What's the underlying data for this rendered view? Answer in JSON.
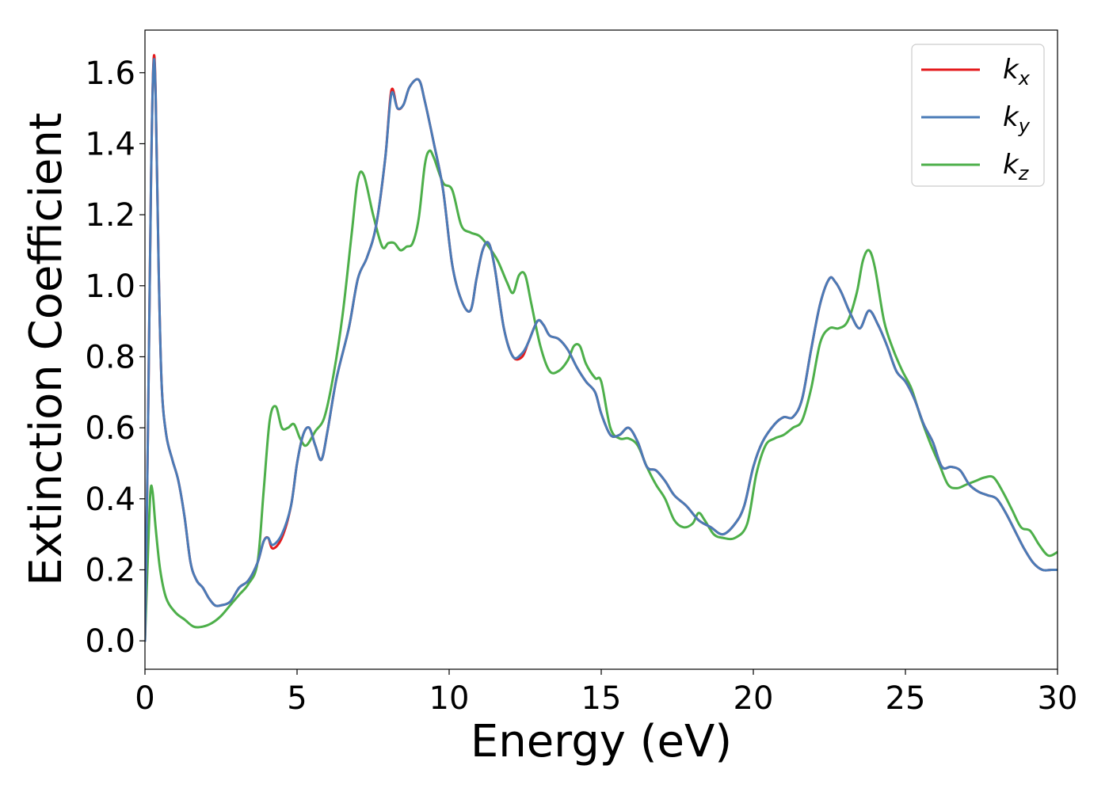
{
  "chart_data": {
    "type": "line",
    "title": "",
    "xlabel": "Energy (eV)",
    "ylabel": "Extinction Coefficient",
    "xlim": [
      0,
      30
    ],
    "ylim": [
      -0.08,
      1.72
    ],
    "xticks": [
      0,
      5,
      10,
      15,
      20,
      25,
      30
    ],
    "xtick_labels": [
      "0",
      "5",
      "10",
      "15",
      "20",
      "25",
      "30"
    ],
    "yticks": [
      0.0,
      0.2,
      0.4,
      0.6,
      0.8,
      1.0,
      1.2,
      1.4,
      1.6
    ],
    "ytick_labels": [
      "0.0",
      "0.2",
      "0.4",
      "0.6",
      "0.8",
      "1.0",
      "1.2",
      "1.4",
      "1.6"
    ],
    "grid": false,
    "legend_position": "top-right",
    "series": [
      {
        "name": "k",
        "subscript": "x",
        "color": "#e41a1c",
        "x": [
          0.0,
          0.1,
          0.2,
          0.28,
          0.35,
          0.45,
          0.55,
          0.7,
          0.9,
          1.1,
          1.3,
          1.5,
          1.7,
          1.9,
          2.1,
          2.3,
          2.5,
          2.8,
          3.1,
          3.4,
          3.7,
          3.9,
          4.05,
          4.2,
          4.5,
          4.8,
          5.0,
          5.2,
          5.4,
          5.6,
          5.8,
          6.0,
          6.3,
          6.7,
          7.0,
          7.3,
          7.6,
          7.9,
          8.1,
          8.3,
          8.5,
          8.7,
          9.0,
          9.2,
          9.5,
          9.8,
          10.1,
          10.4,
          10.7,
          10.9,
          11.1,
          11.3,
          11.5,
          11.8,
          12.1,
          12.4,
          12.6,
          12.9,
          13.1,
          13.3,
          13.6,
          13.9,
          14.2,
          14.5,
          14.8,
          15.0,
          15.3,
          15.6,
          15.9,
          16.2,
          16.5,
          16.8,
          17.1,
          17.4,
          17.8,
          18.2,
          18.6,
          19.0,
          19.4,
          19.7,
          20.0,
          20.3,
          20.7,
          21.0,
          21.3,
          21.6,
          21.9,
          22.2,
          22.5,
          22.7,
          22.9,
          23.2,
          23.5,
          23.8,
          24.1,
          24.4,
          24.7,
          25.0,
          25.3,
          25.6,
          25.9,
          26.2,
          26.5,
          26.8,
          27.1,
          27.4,
          27.7,
          28.0,
          28.3,
          28.6,
          28.9,
          29.2,
          29.5,
          29.8,
          30.0
        ],
        "y": [
          0.0,
          0.6,
          1.3,
          1.63,
          1.55,
          1.05,
          0.72,
          0.58,
          0.51,
          0.45,
          0.35,
          0.22,
          0.17,
          0.15,
          0.12,
          0.1,
          0.1,
          0.11,
          0.15,
          0.17,
          0.22,
          0.28,
          0.29,
          0.26,
          0.29,
          0.38,
          0.5,
          0.58,
          0.6,
          0.55,
          0.51,
          0.59,
          0.74,
          0.88,
          1.02,
          1.08,
          1.17,
          1.36,
          1.55,
          1.5,
          1.51,
          1.56,
          1.58,
          1.52,
          1.4,
          1.27,
          1.06,
          0.96,
          0.93,
          1.02,
          1.1,
          1.12,
          1.05,
          0.88,
          0.8,
          0.8,
          0.84,
          0.9,
          0.89,
          0.86,
          0.85,
          0.82,
          0.77,
          0.73,
          0.7,
          0.64,
          0.58,
          0.58,
          0.6,
          0.56,
          0.49,
          0.48,
          0.45,
          0.41,
          0.38,
          0.34,
          0.32,
          0.3,
          0.33,
          0.38,
          0.49,
          0.56,
          0.61,
          0.63,
          0.63,
          0.68,
          0.82,
          0.95,
          1.02,
          1.01,
          0.98,
          0.92,
          0.88,
          0.93,
          0.89,
          0.83,
          0.76,
          0.73,
          0.68,
          0.61,
          0.56,
          0.49,
          0.49,
          0.48,
          0.44,
          0.42,
          0.41,
          0.4,
          0.36,
          0.31,
          0.26,
          0.22,
          0.2,
          0.2,
          0.2
        ]
      },
      {
        "name": "k",
        "subscript": "y",
        "color": "#4a7bb7",
        "x": [
          0.0,
          0.1,
          0.2,
          0.28,
          0.35,
          0.45,
          0.55,
          0.7,
          0.9,
          1.1,
          1.3,
          1.5,
          1.7,
          1.9,
          2.1,
          2.3,
          2.5,
          2.8,
          3.1,
          3.4,
          3.7,
          3.9,
          4.05,
          4.2,
          4.5,
          4.8,
          5.0,
          5.2,
          5.4,
          5.6,
          5.8,
          6.0,
          6.3,
          6.7,
          7.0,
          7.3,
          7.6,
          7.9,
          8.1,
          8.3,
          8.5,
          8.7,
          9.0,
          9.2,
          9.5,
          9.8,
          10.1,
          10.4,
          10.7,
          10.9,
          11.1,
          11.3,
          11.5,
          11.8,
          12.1,
          12.4,
          12.6,
          12.9,
          13.1,
          13.3,
          13.6,
          13.9,
          14.2,
          14.5,
          14.8,
          15.0,
          15.3,
          15.6,
          15.9,
          16.2,
          16.5,
          16.8,
          17.1,
          17.4,
          17.8,
          18.2,
          18.6,
          19.0,
          19.4,
          19.7,
          20.0,
          20.3,
          20.7,
          21.0,
          21.3,
          21.6,
          21.9,
          22.2,
          22.5,
          22.7,
          22.9,
          23.2,
          23.5,
          23.8,
          24.1,
          24.4,
          24.7,
          25.0,
          25.3,
          25.6,
          25.9,
          26.2,
          26.5,
          26.8,
          27.1,
          27.4,
          27.7,
          28.0,
          28.3,
          28.6,
          28.9,
          29.2,
          29.5,
          29.8,
          30.0
        ],
        "y": [
          0.0,
          0.6,
          1.3,
          1.62,
          1.54,
          1.05,
          0.72,
          0.58,
          0.51,
          0.45,
          0.35,
          0.22,
          0.17,
          0.15,
          0.12,
          0.1,
          0.1,
          0.11,
          0.15,
          0.17,
          0.22,
          0.28,
          0.29,
          0.27,
          0.3,
          0.38,
          0.5,
          0.58,
          0.6,
          0.55,
          0.51,
          0.59,
          0.74,
          0.88,
          1.02,
          1.08,
          1.17,
          1.36,
          1.54,
          1.5,
          1.51,
          1.56,
          1.58,
          1.52,
          1.4,
          1.27,
          1.06,
          0.96,
          0.93,
          1.02,
          1.1,
          1.12,
          1.05,
          0.88,
          0.8,
          0.81,
          0.84,
          0.9,
          0.89,
          0.86,
          0.85,
          0.82,
          0.77,
          0.73,
          0.7,
          0.64,
          0.58,
          0.58,
          0.6,
          0.56,
          0.49,
          0.48,
          0.45,
          0.41,
          0.38,
          0.34,
          0.32,
          0.3,
          0.33,
          0.38,
          0.49,
          0.56,
          0.61,
          0.63,
          0.63,
          0.68,
          0.82,
          0.95,
          1.02,
          1.01,
          0.98,
          0.92,
          0.88,
          0.93,
          0.89,
          0.83,
          0.76,
          0.73,
          0.68,
          0.61,
          0.56,
          0.49,
          0.49,
          0.48,
          0.44,
          0.42,
          0.41,
          0.4,
          0.36,
          0.31,
          0.26,
          0.22,
          0.2,
          0.2,
          0.2
        ]
      },
      {
        "name": "k",
        "subscript": "z",
        "color": "#4daf4a",
        "x": [
          0.0,
          0.1,
          0.18,
          0.25,
          0.35,
          0.5,
          0.7,
          1.0,
          1.3,
          1.6,
          1.9,
          2.2,
          2.5,
          2.8,
          3.1,
          3.4,
          3.7,
          3.9,
          4.1,
          4.3,
          4.5,
          4.7,
          4.9,
          5.1,
          5.3,
          5.6,
          5.9,
          6.2,
          6.5,
          6.8,
          7.0,
          7.2,
          7.5,
          7.8,
          8.0,
          8.2,
          8.4,
          8.6,
          8.8,
          9.0,
          9.2,
          9.35,
          9.5,
          9.8,
          10.1,
          10.4,
          10.7,
          11.0,
          11.3,
          11.6,
          11.9,
          12.1,
          12.3,
          12.5,
          12.7,
          13.0,
          13.3,
          13.6,
          13.9,
          14.1,
          14.3,
          14.5,
          14.8,
          15.0,
          15.3,
          15.6,
          15.9,
          16.2,
          16.5,
          16.8,
          17.1,
          17.4,
          17.7,
          18.0,
          18.2,
          18.4,
          18.7,
          19.0,
          19.4,
          19.8,
          20.1,
          20.4,
          20.7,
          21.0,
          21.3,
          21.6,
          21.9,
          22.2,
          22.5,
          22.8,
          23.1,
          23.4,
          23.6,
          23.8,
          24.0,
          24.3,
          24.6,
          24.9,
          25.2,
          25.5,
          25.8,
          26.1,
          26.4,
          26.7,
          27.0,
          27.3,
          27.6,
          27.9,
          28.2,
          28.5,
          28.8,
          29.1,
          29.4,
          29.7,
          30.0
        ],
        "y": [
          0.0,
          0.25,
          0.42,
          0.42,
          0.32,
          0.2,
          0.12,
          0.08,
          0.06,
          0.04,
          0.04,
          0.05,
          0.07,
          0.1,
          0.13,
          0.16,
          0.22,
          0.42,
          0.62,
          0.66,
          0.6,
          0.6,
          0.61,
          0.57,
          0.55,
          0.59,
          0.63,
          0.75,
          0.92,
          1.15,
          1.3,
          1.31,
          1.2,
          1.11,
          1.12,
          1.12,
          1.1,
          1.11,
          1.12,
          1.19,
          1.34,
          1.38,
          1.36,
          1.29,
          1.27,
          1.17,
          1.15,
          1.14,
          1.11,
          1.07,
          1.01,
          0.98,
          1.03,
          1.03,
          0.95,
          0.83,
          0.76,
          0.76,
          0.79,
          0.83,
          0.83,
          0.78,
          0.74,
          0.73,
          0.6,
          0.57,
          0.57,
          0.55,
          0.49,
          0.44,
          0.4,
          0.34,
          0.32,
          0.33,
          0.36,
          0.34,
          0.3,
          0.29,
          0.29,
          0.33,
          0.47,
          0.55,
          0.57,
          0.58,
          0.6,
          0.62,
          0.71,
          0.84,
          0.88,
          0.88,
          0.9,
          0.98,
          1.07,
          1.1,
          1.05,
          0.9,
          0.82,
          0.76,
          0.71,
          0.63,
          0.56,
          0.5,
          0.44,
          0.43,
          0.44,
          0.45,
          0.46,
          0.46,
          0.42,
          0.37,
          0.32,
          0.31,
          0.27,
          0.24,
          0.25
        ]
      }
    ]
  }
}
